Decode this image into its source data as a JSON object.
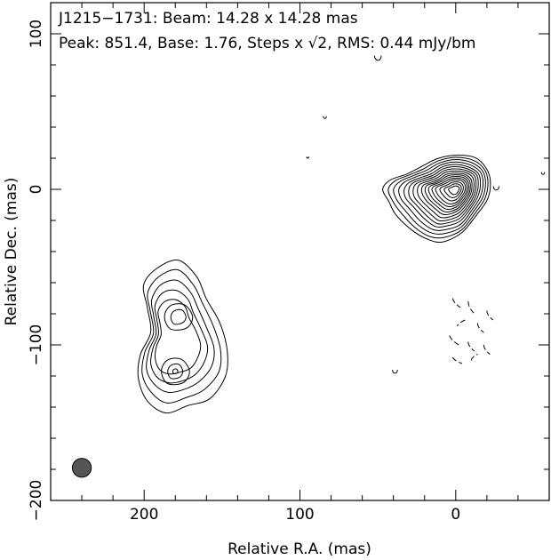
{
  "chart_data": {
    "type": "contour",
    "title_line1": "J1215−1731: Beam: 14.28 x 14.28 mas",
    "title_line2_prefix": "Peak: 851.4, Base: 1.76, Steps x ",
    "title_line2_sqrt": "√2",
    "title_line2_suffix": ", RMS: 0.44 mJy/bm",
    "xlabel": "Relative R.A. (mas)",
    "ylabel": "Relative Dec. (mas)",
    "xlim": [
      260,
      -60
    ],
    "ylim": [
      -200,
      120
    ],
    "x_ticks": [
      {
        "value": 200,
        "label": "200"
      },
      {
        "value": 100,
        "label": "100"
      },
      {
        "value": 0,
        "label": "0"
      }
    ],
    "y_ticks": [
      {
        "value": 100,
        "label": "100"
      },
      {
        "value": 0,
        "label": "0"
      },
      {
        "value": -100,
        "label": "−100"
      },
      {
        "value": -200,
        "label": "−200"
      }
    ],
    "peak_mJy_per_beam": 851.4,
    "base_contour_mJy_per_beam": 1.76,
    "contour_step_factor": "sqrt(2)",
    "rms_mJy_per_beam": 0.44,
    "beam": {
      "major_mas": 14.28,
      "minor_mas": 14.28,
      "center": [
        240,
        -179
      ],
      "color": "#555555"
    },
    "components": [
      {
        "name": "core",
        "center": [
          0,
          0
        ],
        "peak_mJy_per_beam": 851.4,
        "contour_levels": 16,
        "outer_extent": {
          "ra": [
            45,
            -22
          ],
          "dec": [
            -35,
            22
          ]
        }
      },
      {
        "name": "southern-lobe",
        "center": [
          182,
          -95
        ],
        "local_maxima": [
          [
            178,
            -82
          ],
          [
            180,
            -117
          ]
        ],
        "contour_levels": 7,
        "outer_extent": {
          "ra": [
            205,
            143
          ],
          "dec": [
            -143,
            -46
          ]
        }
      }
    ],
    "negative_contours_region": {
      "ra": [
        5,
        -25
      ],
      "dec": [
        -110,
        -70
      ]
    }
  }
}
